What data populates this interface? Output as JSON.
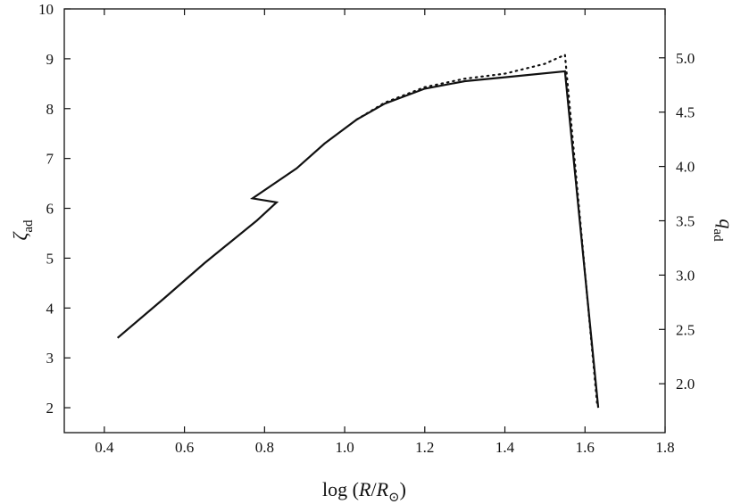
{
  "chart_data": {
    "type": "line",
    "title": "",
    "xlabel": {
      "prefix": "log (",
      "var": "R",
      "slash": "/",
      "var2": "R",
      "sub2": "⊙",
      "suffix": ")"
    },
    "ylabel_left": {
      "var": "ζ",
      "sub": "ad"
    },
    "ylabel_right": {
      "var": "q",
      "sub": "ad"
    },
    "xlim": [
      0.3,
      1.8
    ],
    "ylim_left": [
      1.5,
      10
    ],
    "ylim_right": [
      1.55,
      5.45
    ],
    "x_ticks": [
      "0.4",
      "0.6",
      "0.8",
      "1.0",
      "1.2",
      "1.4",
      "1.6",
      "1.8"
    ],
    "y_left_ticks": [
      "2",
      "3",
      "4",
      "5",
      "6",
      "7",
      "8",
      "9",
      "10"
    ],
    "y_right_ticks": [
      "2.0",
      "2.5",
      "3.0",
      "3.5",
      "4.0",
      "4.5",
      "5.0"
    ],
    "grid": false,
    "legend": "none",
    "series": [
      {
        "style": "solid",
        "axis": "left",
        "x": [
          0.433,
          0.55,
          0.65,
          0.78,
          0.83,
          0.77,
          0.88,
          0.95,
          1.03,
          1.1,
          1.2,
          1.3,
          1.4,
          1.55,
          1.633
        ],
        "y": [
          3.4,
          4.2,
          4.9,
          5.75,
          6.12,
          6.2,
          6.8,
          7.3,
          7.78,
          8.1,
          8.4,
          8.55,
          8.63,
          8.75,
          2.0
        ]
      },
      {
        "style": "dotted",
        "axis": "left",
        "x": [
          1.03,
          1.1,
          1.2,
          1.3,
          1.4,
          1.5,
          1.55,
          1.63
        ],
        "y": [
          7.78,
          8.12,
          8.43,
          8.6,
          8.7,
          8.9,
          9.08,
          2.1
        ]
      }
    ]
  }
}
